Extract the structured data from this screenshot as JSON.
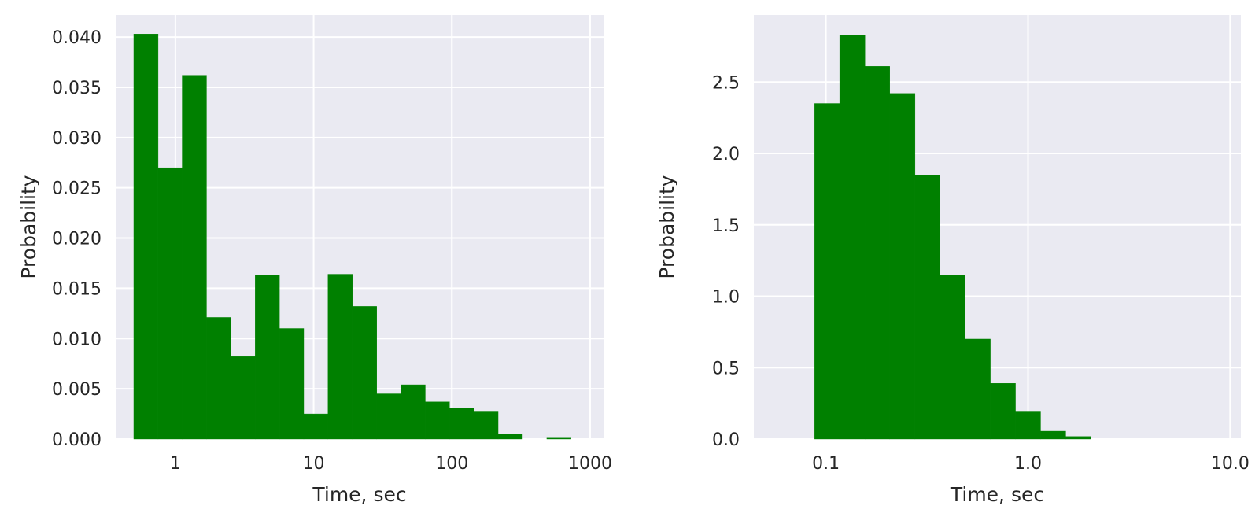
{
  "colors": {
    "panel_background": "#eaeaf2",
    "grid": "#ffffff",
    "bar_fill": "#008000",
    "text": "#262626"
  },
  "chart_data": [
    {
      "type": "bar",
      "xscale": "log",
      "xlim": [
        0.37,
        1250
      ],
      "ylim": [
        0,
        0.0422
      ],
      "grid": true,
      "xlabel": "Time, sec",
      "ylabel": "Probability",
      "xticks": [
        1,
        10,
        100,
        1000
      ],
      "xticklabels": [
        "1",
        "10",
        "100",
        "1000"
      ],
      "yticks": [
        0,
        0.005,
        0.01,
        0.015,
        0.02,
        0.025,
        0.03,
        0.035,
        0.04
      ],
      "yticklabels": [
        "0.000",
        "0.005",
        "0.010",
        "0.015",
        "0.020",
        "0.025",
        "0.030",
        "0.035",
        "0.040"
      ],
      "bin_edges": [
        0.5,
        0.75,
        1.12,
        1.68,
        2.52,
        3.78,
        5.66,
        8.48,
        12.7,
        19.1,
        28.6,
        42.8,
        64.2,
        96.2,
        144,
        216,
        324,
        486,
        728
      ],
      "values": [
        0.0403,
        0.027,
        0.0362,
        0.0121,
        0.0082,
        0.0163,
        0.011,
        0.0025,
        0.0164,
        0.0132,
        0.0045,
        0.0054,
        0.0037,
        0.0031,
        0.0027,
        0.0005,
        0.0,
        0.0001
      ]
    },
    {
      "type": "bar",
      "xscale": "log",
      "xlim": [
        0.044,
        11.3
      ],
      "ylim": [
        0,
        2.97
      ],
      "grid": true,
      "xlabel": "Time, sec",
      "ylabel": "Probability",
      "xticks": [
        0.1,
        1,
        10
      ],
      "xticklabels": [
        "0.1",
        "1.0",
        "10.0"
      ],
      "yticks": [
        0,
        0.5,
        1.0,
        1.5,
        2.0,
        2.5
      ],
      "yticklabels": [
        "0.0",
        "0.5",
        "1.0",
        "1.5",
        "2.0",
        "2.5"
      ],
      "bin_edges": [
        0.088,
        0.117,
        0.156,
        0.207,
        0.276,
        0.367,
        0.489,
        0.651,
        0.867,
        1.154,
        1.537,
        2.046
      ],
      "values": [
        2.35,
        2.83,
        2.61,
        2.42,
        1.85,
        1.15,
        0.7,
        0.39,
        0.19,
        0.055,
        0.018
      ]
    }
  ]
}
